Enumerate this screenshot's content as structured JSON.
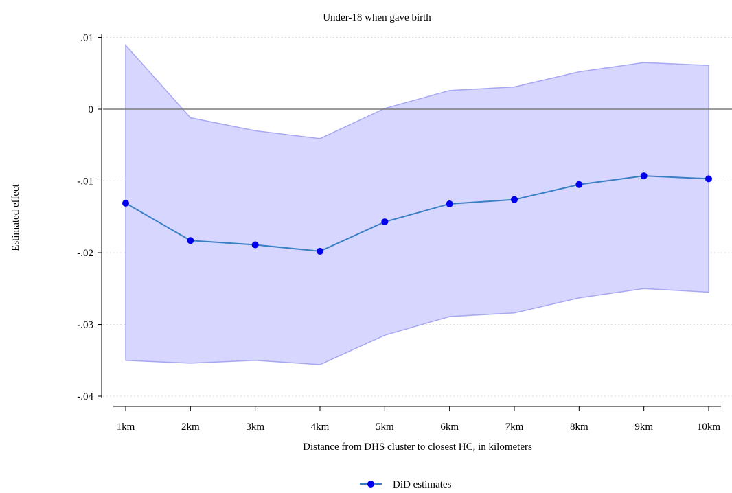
{
  "chart_data": {
    "type": "line",
    "title": "Under-18 when gave birth",
    "xlabel": "Distance from DHS cluster to closest HC, in kilometers",
    "ylabel": "Estimated effect",
    "categories": [
      "1km",
      "2km",
      "3km",
      "4km",
      "5km",
      "6km",
      "7km",
      "8km",
      "9km",
      "10km"
    ],
    "y_ticks": [
      0.01,
      0,
      -0.01,
      -0.02,
      -0.03,
      -0.04
    ],
    "y_tick_labels": [
      ".01",
      "0",
      "-.01",
      "-.02",
      "-.03",
      "-.04"
    ],
    "ylim": [
      -0.041,
      0.0105
    ],
    "reference_line": 0,
    "grid": true,
    "series": [
      {
        "name": "DiD estimates",
        "values": [
          -0.0131,
          -0.0183,
          -0.0189,
          -0.0198,
          -0.0157,
          -0.0132,
          -0.0126,
          -0.0105,
          -0.0093,
          -0.0097
        ],
        "ci_upper": [
          0.0089,
          -0.0012,
          -0.003,
          -0.0041,
          0.0001,
          0.0026,
          0.0031,
          0.0052,
          0.0065,
          0.0061
        ],
        "ci_lower": [
          -0.035,
          -0.0354,
          -0.035,
          -0.0356,
          -0.0315,
          -0.0289,
          -0.0284,
          -0.0263,
          -0.025,
          -0.0255
        ]
      }
    ],
    "legend": {
      "position": "bottom-center"
    },
    "colors": {
      "ci_fill": "#d2d2ff",
      "ci_edge": "#a7a7f2",
      "line": "#3a7fc4",
      "marker": "#0000ee",
      "zero_line": "#7a7a7a",
      "grid": "#dcdcdc"
    }
  }
}
